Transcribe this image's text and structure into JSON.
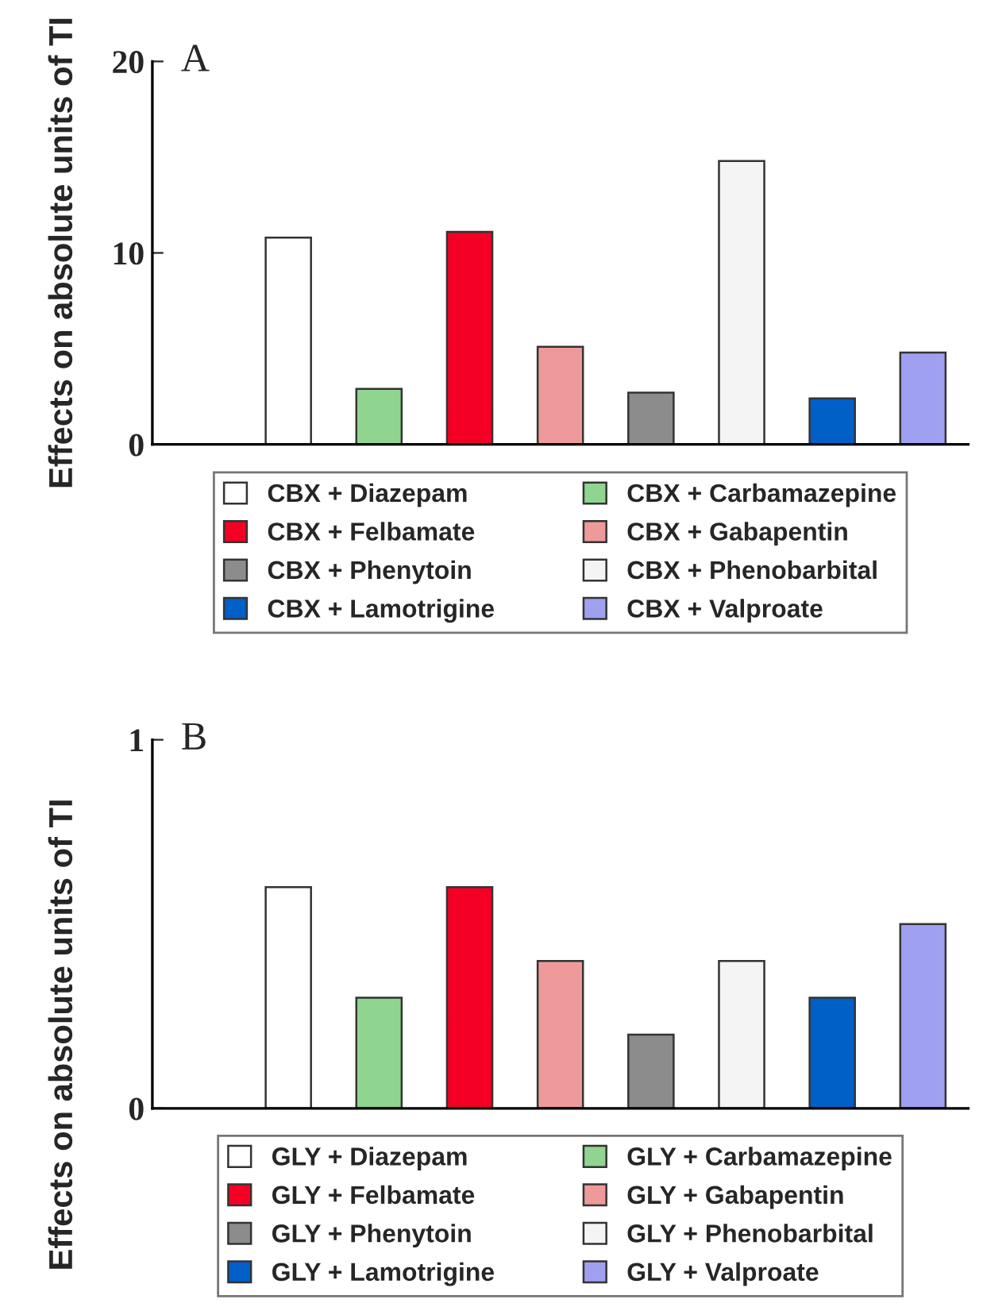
{
  "chart_data": [
    {
      "type": "bar",
      "title": "A",
      "ylabel": "Effects on absolute units of TI",
      "categories": [
        null,
        null,
        null,
        null,
        null,
        null,
        null,
        null,
        null
      ],
      "ylim": [
        0,
        20
      ],
      "yticks": [
        0,
        10,
        20
      ],
      "grid": false,
      "legend": "bottom",
      "tick_labels": "y",
      "series": [
        {
          "name": "CBX + Diazepam",
          "color": "#ffffff",
          "values": [
            null,
            10.8,
            null,
            null,
            null,
            null,
            null,
            null,
            null
          ]
        },
        {
          "name": "CBX + Carbamazepine",
          "color": "#8fd48f",
          "values": [
            null,
            null,
            2.9,
            null,
            null,
            null,
            null,
            null,
            null
          ]
        },
        {
          "name": "CBX + Felbamate",
          "color": "#f50025",
          "values": [
            null,
            null,
            null,
            11.1,
            null,
            null,
            null,
            null,
            null
          ]
        },
        {
          "name": "CBX + Gabapentin",
          "color": "#ee9a9a",
          "values": [
            null,
            null,
            null,
            null,
            5.1,
            null,
            null,
            null,
            null
          ]
        },
        {
          "name": "CBX + Phenytoin",
          "color": "#8c8c8c",
          "values": [
            null,
            null,
            null,
            null,
            null,
            2.7,
            null,
            null,
            null
          ]
        },
        {
          "name": "CBX + Phenobarbital",
          "color": "#f4f4f4",
          "values": [
            null,
            null,
            null,
            null,
            null,
            null,
            14.8,
            null,
            null
          ]
        },
        {
          "name": "CBX + Lamotrigine",
          "color": "#0060c8",
          "values": [
            null,
            null,
            null,
            null,
            null,
            null,
            null,
            2.4,
            null
          ]
        },
        {
          "name": "CBX + Valproate",
          "color": "#a0a0f0",
          "values": [
            null,
            null,
            null,
            null,
            null,
            null,
            null,
            null,
            4.8
          ]
        }
      ]
    },
    {
      "type": "bar",
      "title": "B",
      "ylabel": "Effects on absolute units of TI",
      "categories": [
        null,
        null,
        null,
        null,
        null,
        null,
        null,
        null,
        null
      ],
      "ylim": [
        0,
        1
      ],
      "yticks": [
        0,
        1
      ],
      "grid": false,
      "legend": "bottom",
      "tick_labels": "y",
      "series": [
        {
          "name": "GLY + Diazepam",
          "color": "#ffffff",
          "values": [
            null,
            0.6,
            null,
            null,
            null,
            null,
            null,
            null,
            null
          ]
        },
        {
          "name": "GLY + Carbamazepine",
          "color": "#8fd48f",
          "values": [
            null,
            null,
            0.3,
            null,
            null,
            null,
            null,
            null,
            null
          ]
        },
        {
          "name": "GLY + Felbamate",
          "color": "#f50025",
          "values": [
            null,
            null,
            null,
            0.6,
            null,
            null,
            null,
            null,
            null
          ]
        },
        {
          "name": "GLY + Gabapentin",
          "color": "#ee9a9a",
          "values": [
            null,
            null,
            null,
            null,
            0.4,
            null,
            null,
            null,
            null
          ]
        },
        {
          "name": "GLY + Phenytoin",
          "color": "#8c8c8c",
          "values": [
            null,
            null,
            null,
            null,
            null,
            0.2,
            null,
            null,
            null
          ]
        },
        {
          "name": "GLY + Phenobarbital",
          "color": "#f4f4f4",
          "values": [
            null,
            null,
            null,
            null,
            null,
            null,
            0.4,
            null,
            null
          ]
        },
        {
          "name": "GLY + Lamotrigine",
          "color": "#0060c8",
          "values": [
            null,
            null,
            null,
            null,
            null,
            null,
            null,
            0.3,
            null
          ]
        },
        {
          "name": "GLY + Valproate",
          "color": "#a0a0f0",
          "values": [
            null,
            null,
            null,
            null,
            null,
            null,
            null,
            null,
            0.5
          ]
        }
      ]
    }
  ]
}
